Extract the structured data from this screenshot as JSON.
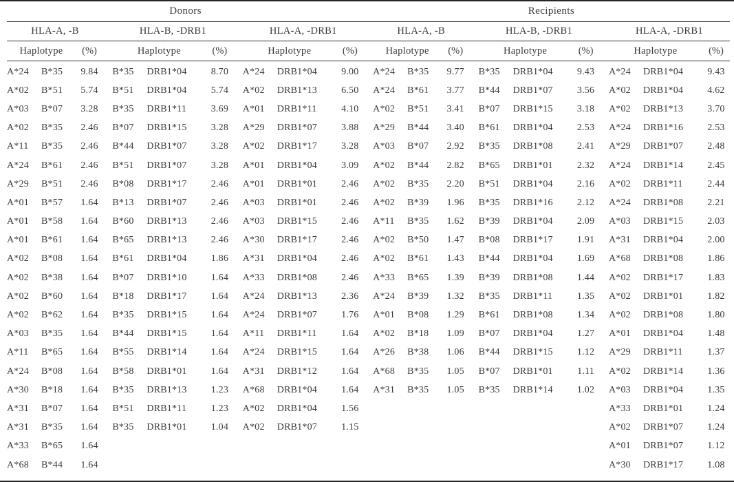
{
  "table": {
    "sections": [
      {
        "label": "Donors"
      },
      {
        "label": "Recipients"
      }
    ],
    "groups": [
      {
        "section": "Donors",
        "label": "HLA-A, -B",
        "haplotype_label": "Haplotype",
        "pct_label": "(%)",
        "rows": [
          [
            "A*24",
            "B*35",
            "9.84"
          ],
          [
            "A*02",
            "B*51",
            "5.74"
          ],
          [
            "A*03",
            "B*07",
            "3.28"
          ],
          [
            "A*02",
            "B*35",
            "2.46"
          ],
          [
            "A*11",
            "B*35",
            "2.46"
          ],
          [
            "A*24",
            "B*61",
            "2.46"
          ],
          [
            "A*29",
            "B*51",
            "2.46"
          ],
          [
            "A*01",
            "B*57",
            "1.64"
          ],
          [
            "A*01",
            "B*58",
            "1.64"
          ],
          [
            "A*01",
            "B*61",
            "1.64"
          ],
          [
            "A*02",
            "B*08",
            "1.64"
          ],
          [
            "A*02",
            "B*38",
            "1.64"
          ],
          [
            "A*02",
            "B*60",
            "1.64"
          ],
          [
            "A*02",
            "B*62",
            "1.64"
          ],
          [
            "A*03",
            "B*35",
            "1.64"
          ],
          [
            "A*11",
            "B*65",
            "1.64"
          ],
          [
            "A*24",
            "B*08",
            "1.64"
          ],
          [
            "A*30",
            "B*18",
            "1.64"
          ],
          [
            "A*31",
            "B*07",
            "1.64"
          ],
          [
            "A*31",
            "B*35",
            "1.64"
          ],
          [
            "A*33",
            "B*65",
            "1.64"
          ],
          [
            "A*68",
            "B*44",
            "1.64"
          ]
        ]
      },
      {
        "section": "Donors",
        "label": "HLA-B, -DRB1",
        "haplotype_label": "Haplotype",
        "pct_label": "(%)",
        "rows": [
          [
            "B*35",
            "DRB1*04",
            "8.70"
          ],
          [
            "B*51",
            "DRB1*04",
            "5.74"
          ],
          [
            "B*35",
            "DRB1*11",
            "3.69"
          ],
          [
            "B*07",
            "DRB1*15",
            "3.28"
          ],
          [
            "B*44",
            "DRB1*07",
            "3.28"
          ],
          [
            "B*51",
            "DRB1*07",
            "3.28"
          ],
          [
            "B*08",
            "DRB1*17",
            "2.46"
          ],
          [
            "B*13",
            "DRB1*07",
            "2.46"
          ],
          [
            "B*60",
            "DRB1*13",
            "2.46"
          ],
          [
            "B*65",
            "DRB1*13",
            "2.46"
          ],
          [
            "B*61",
            "DRB1*04",
            "1.86"
          ],
          [
            "B*07",
            "DRB1*10",
            "1.64"
          ],
          [
            "B*18",
            "DRB1*17",
            "1.64"
          ],
          [
            "B*35",
            "DRB1*15",
            "1.64"
          ],
          [
            "B*44",
            "DRB1*15",
            "1.64"
          ],
          [
            "B*55",
            "DRB1*14",
            "1.64"
          ],
          [
            "B*58",
            "DRB1*01",
            "1.64"
          ],
          [
            "B*35",
            "DRB1*13",
            "1.23"
          ],
          [
            "B*51",
            "DRB1*11",
            "1.23"
          ],
          [
            "B*35",
            "DRB1*01",
            "1.04"
          ]
        ]
      },
      {
        "section": "Donors",
        "label": "HLA-A, -DRB1",
        "haplotype_label": "Haplotype",
        "pct_label": "(%)",
        "rows": [
          [
            "A*24",
            "DRB1*04",
            "9.00"
          ],
          [
            "A*02",
            "DRB1*13",
            "6.50"
          ],
          [
            "A*01",
            "DRB1*11",
            "4.10"
          ],
          [
            "A*29",
            "DRB1*07",
            "3.88"
          ],
          [
            "A*02",
            "DRB1*17",
            "3.28"
          ],
          [
            "A*01",
            "DRB1*04",
            "3.09"
          ],
          [
            "A*01",
            "DRB1*01",
            "2.46"
          ],
          [
            "A*03",
            "DRB1*01",
            "2.46"
          ],
          [
            "A*03",
            "DRB1*15",
            "2.46"
          ],
          [
            "A*30",
            "DRB1*17",
            "2.46"
          ],
          [
            "A*31",
            "DRB1*04",
            "2.46"
          ],
          [
            "A*33",
            "DRB1*08",
            "2.46"
          ],
          [
            "A*24",
            "DRB1*13",
            "2.36"
          ],
          [
            "A*24",
            "DRB1*07",
            "1.76"
          ],
          [
            "A*11",
            "DRB1*11",
            "1.64"
          ],
          [
            "A*24",
            "DRB1*15",
            "1.64"
          ],
          [
            "A*31",
            "DRB1*12",
            "1.64"
          ],
          [
            "A*68",
            "DRB1*04",
            "1.64"
          ],
          [
            "A*02",
            "DRB1*04",
            "1.56"
          ],
          [
            "A*02",
            "DRB1*07",
            "1.15"
          ]
        ]
      },
      {
        "section": "Recipients",
        "label": "HLA-A, -B",
        "haplotype_label": "Haplotype",
        "pct_label": "(%)",
        "rows": [
          [
            "A*24",
            "B*35",
            "9.77"
          ],
          [
            "A*24",
            "B*61",
            "3.77"
          ],
          [
            "A*02",
            "B*51",
            "3.41"
          ],
          [
            "A*29",
            "B*44",
            "3.40"
          ],
          [
            "A*03",
            "B*07",
            "2.92"
          ],
          [
            "A*02",
            "B*44",
            "2.82"
          ],
          [
            "A*02",
            "B*35",
            "2.20"
          ],
          [
            "A*02",
            "B*39",
            "1.96"
          ],
          [
            "A*11",
            "B*35",
            "1.62"
          ],
          [
            "A*02",
            "B*50",
            "1.47"
          ],
          [
            "A*02",
            "B*61",
            "1.43"
          ],
          [
            "A*33",
            "B*65",
            "1.39"
          ],
          [
            "A*24",
            "B*39",
            "1.32"
          ],
          [
            "A*01",
            "B*08",
            "1.29"
          ],
          [
            "A*02",
            "B*18",
            "1.09"
          ],
          [
            "A*26",
            "B*38",
            "1.06"
          ],
          [
            "A*68",
            "B*35",
            "1.05"
          ],
          [
            "A*31",
            "B*35",
            "1.05"
          ]
        ]
      },
      {
        "section": "Recipients",
        "label": "HLA-B, -DRB1",
        "haplotype_label": "Haplotype",
        "pct_label": "(%)",
        "rows": [
          [
            "B*35",
            "DRB1*04",
            "9.43"
          ],
          [
            "B*44",
            "DRB1*07",
            "3.56"
          ],
          [
            "B*07",
            "DRB1*15",
            "3.18"
          ],
          [
            "B*61",
            "DRB1*04",
            "2.53"
          ],
          [
            "B*35",
            "DRB1*08",
            "2.41"
          ],
          [
            "B*65",
            "DRB1*01",
            "2.32"
          ],
          [
            "B*51",
            "DRB1*04",
            "2.16"
          ],
          [
            "B*35",
            "DRB1*16",
            "2.12"
          ],
          [
            "B*39",
            "DRB1*04",
            "2.09"
          ],
          [
            "B*08",
            "DRB1*17",
            "1.91"
          ],
          [
            "B*44",
            "DRB1*04",
            "1.69"
          ],
          [
            "B*39",
            "DRB1*08",
            "1.44"
          ],
          [
            "B*35",
            "DRB1*11",
            "1.35"
          ],
          [
            "B*61",
            "DRB1*08",
            "1.34"
          ],
          [
            "B*07",
            "DRB1*04",
            "1.27"
          ],
          [
            "B*44",
            "DRB1*15",
            "1.12"
          ],
          [
            "B*07",
            "DRB1*01",
            "1.11"
          ],
          [
            "B*35",
            "DRB1*14",
            "1.02"
          ]
        ]
      },
      {
        "section": "Recipients",
        "label": "HLA-A, -DRB1",
        "haplotype_label": "Haplotype",
        "pct_label": "(%)",
        "rows": [
          [
            "A*24",
            "DRB1*04",
            "9.43"
          ],
          [
            "A*02",
            "DRB1*04",
            "4.62"
          ],
          [
            "A*02",
            "DRB1*13",
            "3.70"
          ],
          [
            "A*24",
            "DRB1*16",
            "2.53"
          ],
          [
            "A*29",
            "DRB1*07",
            "2.48"
          ],
          [
            "A*24",
            "DRB1*14",
            "2.45"
          ],
          [
            "A*02",
            "DRB1*11",
            "2.44"
          ],
          [
            "A*24",
            "DRB1*08",
            "2.21"
          ],
          [
            "A*03",
            "DRB1*15",
            "2.03"
          ],
          [
            "A*31",
            "DRB1*04",
            "2.00"
          ],
          [
            "A*68",
            "DRB1*08",
            "1.86"
          ],
          [
            "A*02",
            "DRB1*17",
            "1.83"
          ],
          [
            "A*02",
            "DRB1*01",
            "1.82"
          ],
          [
            "A*02",
            "DRB1*08",
            "1.80"
          ],
          [
            "A*01",
            "DRB1*04",
            "1.48"
          ],
          [
            "A*29",
            "DRB1*11",
            "1.37"
          ],
          [
            "A*02",
            "DRB1*14",
            "1.36"
          ],
          [
            "A*03",
            "DRB1*04",
            "1.35"
          ],
          [
            "A*33",
            "DRB1*01",
            "1.24"
          ],
          [
            "A*02",
            "DRB1*07",
            "1.24"
          ],
          [
            "A*01",
            "DRB1*07",
            "1.12"
          ],
          [
            "A*30",
            "DRB1*17",
            "1.08"
          ]
        ]
      }
    ]
  }
}
